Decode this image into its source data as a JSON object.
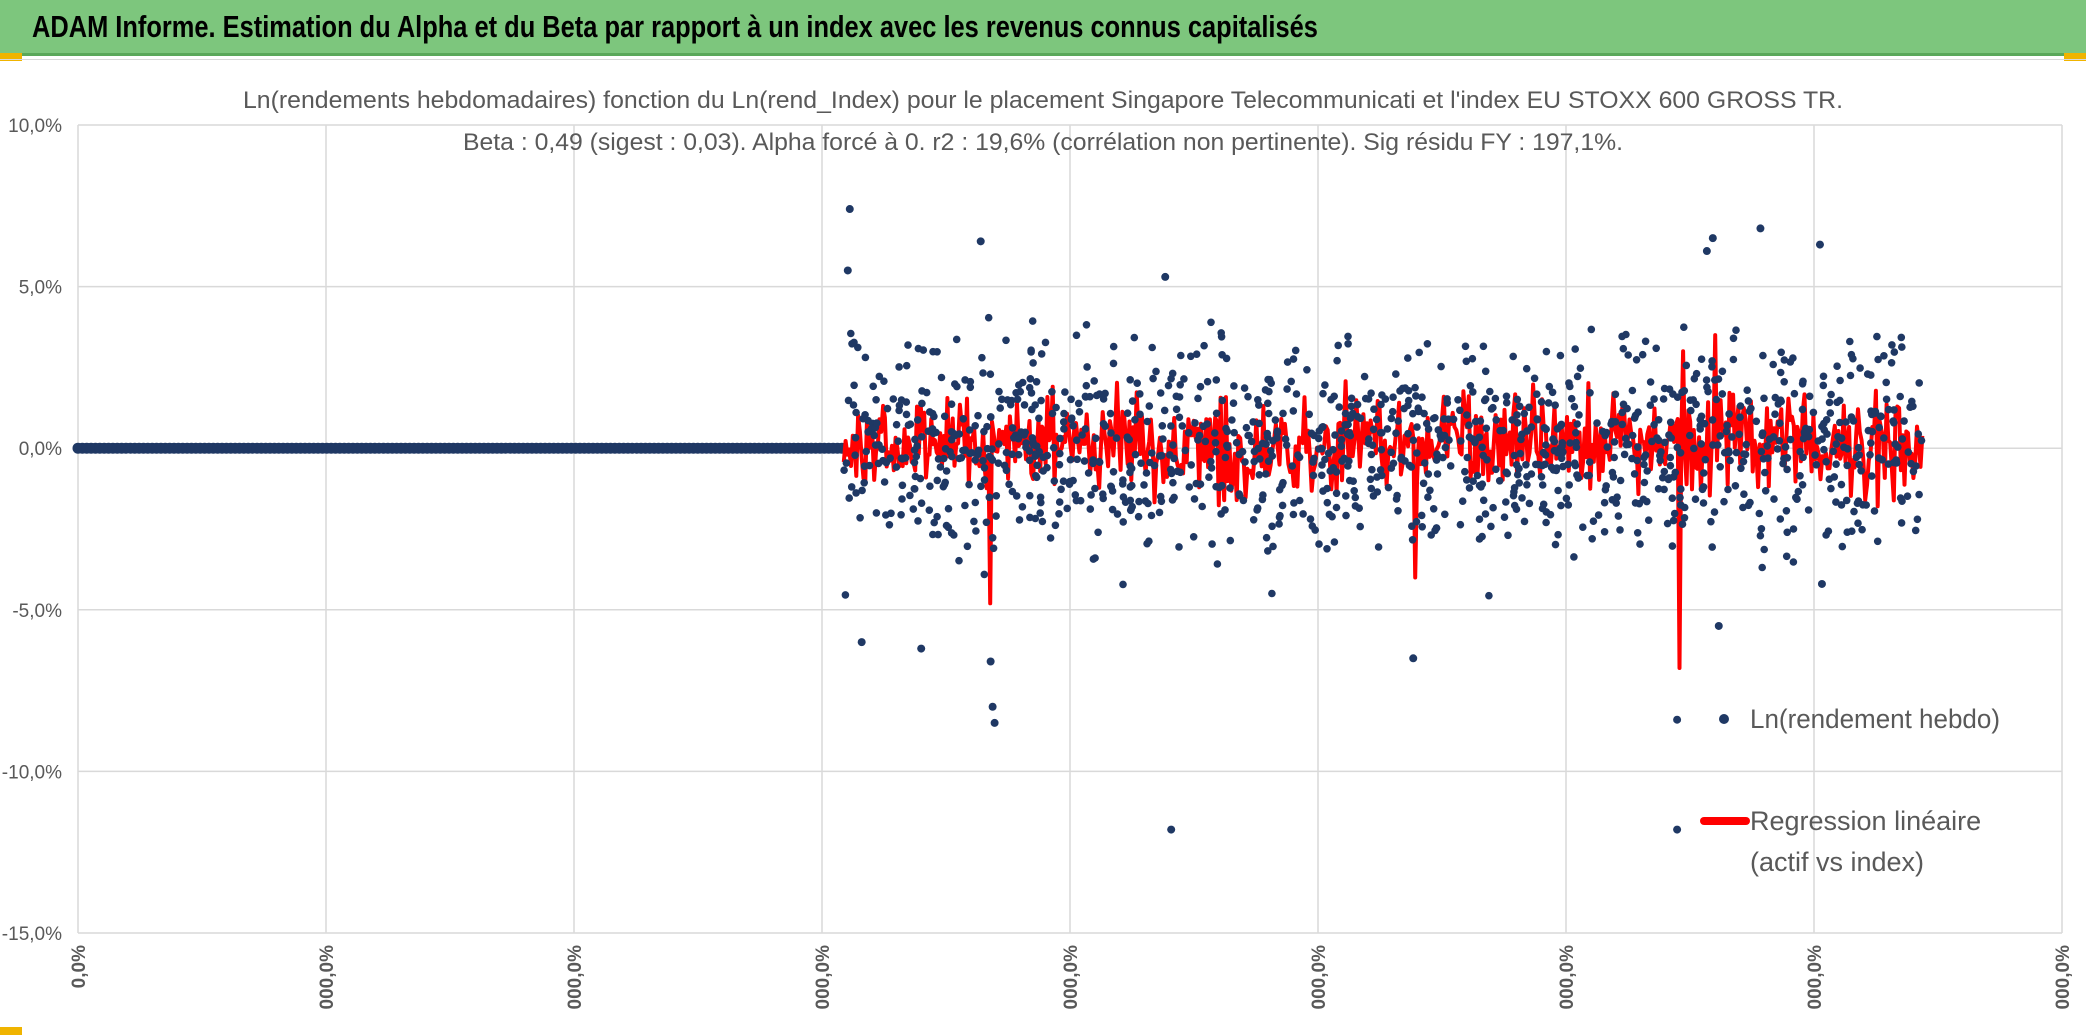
{
  "header": {
    "title": "ADAM Informe. Estimation du Alpha et du Beta par rapport à un index avec les revenus connus capitalisés"
  },
  "colors": {
    "header_bg": "#7dc67d",
    "point": "#1f3864",
    "regression": "#ff0000",
    "grid": "#d9d9d9",
    "axis_text": "#595959"
  },
  "chart_data": {
    "type": "scatter",
    "title_line1": "Ln(rendements hebdomadaires) fonction du Ln(rend_Index) pour le placement Singapore Telecommunicati et l'index EU STOXX 600 GROSS TR.",
    "title_line2": "Beta : 0,49 (sigest : 0,03). Alpha forcé à 0. r2 : 19,6% (corrélation non pertinente). Sig résidu FY : 197,1%.",
    "ylim": [
      -15,
      10
    ],
    "y_ticks": [
      10,
      5,
      0,
      -5,
      -10,
      -15
    ],
    "y_tick_labels": [
      "10,0%",
      "5,0%",
      "0,0%",
      "-5,0%",
      "-10,0%",
      "-15,0%"
    ],
    "x_tick_labels": [
      "0,0%",
      "000,0%",
      "000,0%",
      "000,0%",
      "000,0%",
      "000,0%",
      "000,0%",
      "000,0%",
      "000,0%"
    ],
    "x_tick_count": 9,
    "series": [
      {
        "name": "Ln(rendement hebdo)",
        "marker": "point",
        "description_note": "~1100 weekly log-return points, mostly within -5%..+5%"
      },
      {
        "name": "Regression linéaire (actif vs index)",
        "marker": "line"
      }
    ],
    "notable_points": [
      {
        "x_frac": 0.389,
        "y": 7.4
      },
      {
        "x_frac": 0.388,
        "y": 5.5
      },
      {
        "x_frac": 0.455,
        "y": 6.4
      },
      {
        "x_frac": 0.548,
        "y": 5.3
      },
      {
        "x_frac": 0.848,
        "y": 6.8
      },
      {
        "x_frac": 0.824,
        "y": 6.5
      },
      {
        "x_frac": 0.821,
        "y": 6.1
      },
      {
        "x_frac": 0.878,
        "y": 6.3
      },
      {
        "x_frac": 0.461,
        "y": -8.0
      },
      {
        "x_frac": 0.462,
        "y": -8.5
      },
      {
        "x_frac": 0.46,
        "y": -6.6
      },
      {
        "x_frac": 0.551,
        "y": -11.8
      },
      {
        "x_frac": 0.806,
        "y": -11.8
      },
      {
        "x_frac": 0.806,
        "y": -8.4
      },
      {
        "x_frac": 0.673,
        "y": -6.5
      },
      {
        "x_frac": 0.395,
        "y": -6.0
      },
      {
        "x_frac": 0.425,
        "y": -6.2
      },
      {
        "x_frac": 0.827,
        "y": -5.5
      },
      {
        "x_frac": 0.879,
        "y": -4.2
      }
    ],
    "regression_spikes": [
      {
        "x_frac": 0.46,
        "y": -4.8
      },
      {
        "x_frac": 0.461,
        "y": 3.8
      },
      {
        "x_frac": 0.462,
        "y": -4.2
      },
      {
        "x_frac": 0.551,
        "y": -4.8
      },
      {
        "x_frac": 0.806,
        "y": -7.0
      },
      {
        "x_frac": 0.807,
        "y": -6.8
      },
      {
        "x_frac": 0.809,
        "y": 3.0
      },
      {
        "x_frac": 0.825,
        "y": 3.5
      },
      {
        "x_frac": 0.913,
        "y": -4.0
      },
      {
        "x_frac": 0.913,
        "y": 2.0
      },
      {
        "x_frac": 0.715,
        "y": -4.2
      },
      {
        "x_frac": 0.674,
        "y": -4.0
      }
    ]
  }
}
